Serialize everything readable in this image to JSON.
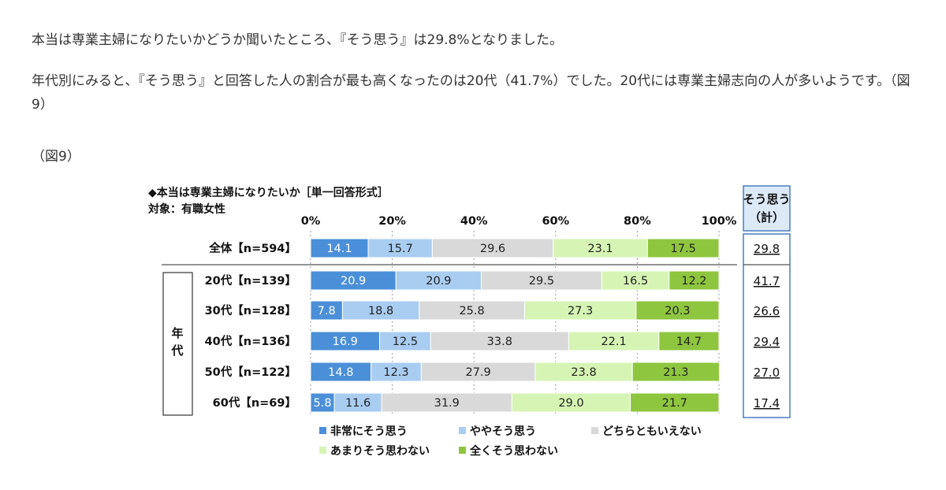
{
  "article": {
    "paragraph1": "本当は専業主婦になりたいかどうか聞いたところ、『そう思う』は29.8%となりました。",
    "paragraph2": "年代別にみると、『そう思う』と回答した人の割合が最も高くなったのは20代（41.7%）でした。20代には専業主婦志向の人が多いようです。（図9）",
    "figure_label": "（図9）"
  },
  "chart_data": {
    "type": "bar",
    "orientation": "horizontal-stacked-100",
    "title": "◆本当は専業主婦になりたいか［単一回答形式］",
    "subtitle": "対象：有職女性",
    "x_ticks": [
      "0%",
      "20%",
      "40%",
      "60%",
      "80%",
      "100%"
    ],
    "xlim": [
      0,
      100
    ],
    "group_label": "年代",
    "summary_header": [
      "そう思う",
      "（計）"
    ],
    "legend_position": "bottom",
    "series": [
      {
        "name": "非常にそう思う",
        "color": "#4a8fd8"
      },
      {
        "name": "ややそう思う",
        "color": "#a9cdf1"
      },
      {
        "name": "どちらともいえない",
        "color": "#d9d9d9"
      },
      {
        "name": "あまりそう思わない",
        "color": "#d6f5b4"
      },
      {
        "name": "全くそう思わない",
        "color": "#8ec63f"
      }
    ],
    "rows": [
      {
        "label": "全体【n=594】",
        "values": [
          14.1,
          15.7,
          29.6,
          23.1,
          17.5
        ],
        "labels": [
          "14.1",
          "15.7",
          "29.6",
          "23.1",
          "17.5"
        ],
        "total": "29.8"
      },
      {
        "label": "20代【n=139】",
        "values": [
          20.9,
          20.9,
          29.5,
          16.5,
          12.2
        ],
        "labels": [
          "20.9",
          "20.9",
          "29.5",
          "16.5",
          "12.2"
        ],
        "total": "41.7"
      },
      {
        "label": "30代【n=128】",
        "values": [
          7.8,
          18.8,
          25.8,
          27.3,
          20.3
        ],
        "labels": [
          "7.8",
          "18.8",
          "25.8",
          "27.3",
          "20.3"
        ],
        "total": "26.6"
      },
      {
        "label": "40代【n=136】",
        "values": [
          16.9,
          12.5,
          33.8,
          22.1,
          14.7
        ],
        "labels": [
          "16.9",
          "12.5",
          "33.8",
          "22.1",
          "14.7"
        ],
        "total": "29.4"
      },
      {
        "label": "50代【n=122】",
        "values": [
          14.8,
          12.3,
          27.9,
          23.8,
          21.3
        ],
        "labels": [
          "14.8",
          "12.3",
          "27.9",
          "23.8",
          "21.3"
        ],
        "total": "27.0"
      },
      {
        "label": "60代【n=69】",
        "values": [
          5.8,
          11.6,
          31.9,
          29.0,
          21.7
        ],
        "labels": [
          "5.8",
          "11.6",
          "31.9",
          "29.0",
          "21.7"
        ],
        "total": "17.4"
      }
    ]
  }
}
